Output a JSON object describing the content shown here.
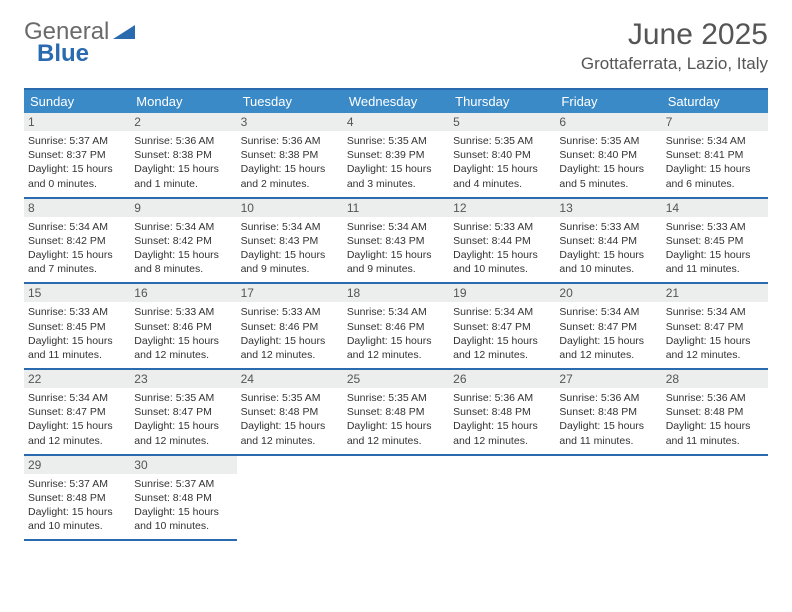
{
  "brand": {
    "part1": "General",
    "part2": "Blue"
  },
  "title": {
    "month": "June 2025",
    "location": "Grottaferrata, Lazio, Italy"
  },
  "colors": {
    "header_bg": "#3a8ac8",
    "border": "#2a6bb0",
    "daynum_bg": "#eceded",
    "text": "#333333",
    "logo_gray": "#6a6a6a",
    "logo_blue": "#2a6bb0"
  },
  "weekdays": [
    "Sunday",
    "Monday",
    "Tuesday",
    "Wednesday",
    "Thursday",
    "Friday",
    "Saturday"
  ],
  "weeks": [
    [
      {
        "n": "1",
        "sr": "5:37 AM",
        "ss": "8:37 PM",
        "dl": "15 hours and 0 minutes."
      },
      {
        "n": "2",
        "sr": "5:36 AM",
        "ss": "8:38 PM",
        "dl": "15 hours and 1 minute."
      },
      {
        "n": "3",
        "sr": "5:36 AM",
        "ss": "8:38 PM",
        "dl": "15 hours and 2 minutes."
      },
      {
        "n": "4",
        "sr": "5:35 AM",
        "ss": "8:39 PM",
        "dl": "15 hours and 3 minutes."
      },
      {
        "n": "5",
        "sr": "5:35 AM",
        "ss": "8:40 PM",
        "dl": "15 hours and 4 minutes."
      },
      {
        "n": "6",
        "sr": "5:35 AM",
        "ss": "8:40 PM",
        "dl": "15 hours and 5 minutes."
      },
      {
        "n": "7",
        "sr": "5:34 AM",
        "ss": "8:41 PM",
        "dl": "15 hours and 6 minutes."
      }
    ],
    [
      {
        "n": "8",
        "sr": "5:34 AM",
        "ss": "8:42 PM",
        "dl": "15 hours and 7 minutes."
      },
      {
        "n": "9",
        "sr": "5:34 AM",
        "ss": "8:42 PM",
        "dl": "15 hours and 8 minutes."
      },
      {
        "n": "10",
        "sr": "5:34 AM",
        "ss": "8:43 PM",
        "dl": "15 hours and 9 minutes."
      },
      {
        "n": "11",
        "sr": "5:34 AM",
        "ss": "8:43 PM",
        "dl": "15 hours and 9 minutes."
      },
      {
        "n": "12",
        "sr": "5:33 AM",
        "ss": "8:44 PM",
        "dl": "15 hours and 10 minutes."
      },
      {
        "n": "13",
        "sr": "5:33 AM",
        "ss": "8:44 PM",
        "dl": "15 hours and 10 minutes."
      },
      {
        "n": "14",
        "sr": "5:33 AM",
        "ss": "8:45 PM",
        "dl": "15 hours and 11 minutes."
      }
    ],
    [
      {
        "n": "15",
        "sr": "5:33 AM",
        "ss": "8:45 PM",
        "dl": "15 hours and 11 minutes."
      },
      {
        "n": "16",
        "sr": "5:33 AM",
        "ss": "8:46 PM",
        "dl": "15 hours and 12 minutes."
      },
      {
        "n": "17",
        "sr": "5:33 AM",
        "ss": "8:46 PM",
        "dl": "15 hours and 12 minutes."
      },
      {
        "n": "18",
        "sr": "5:34 AM",
        "ss": "8:46 PM",
        "dl": "15 hours and 12 minutes."
      },
      {
        "n": "19",
        "sr": "5:34 AM",
        "ss": "8:47 PM",
        "dl": "15 hours and 12 minutes."
      },
      {
        "n": "20",
        "sr": "5:34 AM",
        "ss": "8:47 PM",
        "dl": "15 hours and 12 minutes."
      },
      {
        "n": "21",
        "sr": "5:34 AM",
        "ss": "8:47 PM",
        "dl": "15 hours and 12 minutes."
      }
    ],
    [
      {
        "n": "22",
        "sr": "5:34 AM",
        "ss": "8:47 PM",
        "dl": "15 hours and 12 minutes."
      },
      {
        "n": "23",
        "sr": "5:35 AM",
        "ss": "8:47 PM",
        "dl": "15 hours and 12 minutes."
      },
      {
        "n": "24",
        "sr": "5:35 AM",
        "ss": "8:48 PM",
        "dl": "15 hours and 12 minutes."
      },
      {
        "n": "25",
        "sr": "5:35 AM",
        "ss": "8:48 PM",
        "dl": "15 hours and 12 minutes."
      },
      {
        "n": "26",
        "sr": "5:36 AM",
        "ss": "8:48 PM",
        "dl": "15 hours and 12 minutes."
      },
      {
        "n": "27",
        "sr": "5:36 AM",
        "ss": "8:48 PM",
        "dl": "15 hours and 11 minutes."
      },
      {
        "n": "28",
        "sr": "5:36 AM",
        "ss": "8:48 PM",
        "dl": "15 hours and 11 minutes."
      }
    ],
    [
      {
        "n": "29",
        "sr": "5:37 AM",
        "ss": "8:48 PM",
        "dl": "15 hours and 10 minutes."
      },
      {
        "n": "30",
        "sr": "5:37 AM",
        "ss": "8:48 PM",
        "dl": "15 hours and 10 minutes."
      },
      null,
      null,
      null,
      null,
      null
    ]
  ],
  "labels": {
    "sunrise": "Sunrise:",
    "sunset": "Sunset:",
    "daylight": "Daylight:"
  }
}
